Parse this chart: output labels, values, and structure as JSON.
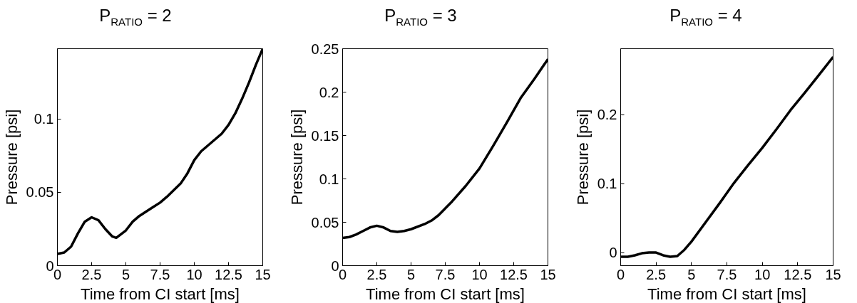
{
  "chart_data": [
    {
      "type": "line",
      "title": "P$_{RATIO}$ = 2",
      "xlabel": "Time from CI start [ms]",
      "ylabel": "Pressure [psi]",
      "xlim": [
        0,
        15
      ],
      "ylim": [
        0,
        0.148
      ],
      "xticks": [
        0,
        2.5,
        5,
        7.5,
        10,
        12.5,
        15
      ],
      "yticks": [
        0,
        0.05,
        0.1
      ],
      "x": [
        0,
        0.5,
        1,
        1.5,
        2,
        2.5,
        3,
        3.5,
        4,
        4.3,
        5,
        5.5,
        6,
        7,
        7.5,
        8,
        9,
        9.5,
        10,
        10.5,
        11,
        12,
        12.5,
        13,
        13.5,
        14,
        14.5,
        15
      ],
      "series": [
        {
          "color": "#000000",
          "values": [
            0.008,
            0.009,
            0.013,
            0.022,
            0.03,
            0.033,
            0.031,
            0.025,
            0.02,
            0.019,
            0.024,
            0.03,
            0.034,
            0.04,
            0.043,
            0.047,
            0.056,
            0.063,
            0.072,
            0.078,
            0.082,
            0.09,
            0.096,
            0.104,
            0.114,
            0.125,
            0.137,
            0.148
          ]
        }
      ]
    },
    {
      "type": "line",
      "title": "P$_{RATIO}$ = 3",
      "xlabel": "Time from CI start [ms]",
      "ylabel": "Pressure [psi]",
      "xlim": [
        0,
        15
      ],
      "ylim": [
        0,
        0.25
      ],
      "xticks": [
        0,
        2.5,
        5,
        7.5,
        10,
        12.5,
        15
      ],
      "yticks": [
        0,
        0.05,
        0.1,
        0.15,
        0.2,
        0.25
      ],
      "x": [
        0,
        0.5,
        1,
        1.5,
        2,
        2.5,
        3,
        3.5,
        4,
        4.5,
        5,
        6,
        6.5,
        7,
        7.5,
        8,
        9,
        10,
        11,
        12,
        13,
        14,
        15
      ],
      "series": [
        {
          "color": "#000000",
          "values": [
            0.032,
            0.033,
            0.036,
            0.04,
            0.044,
            0.046,
            0.044,
            0.04,
            0.039,
            0.04,
            0.042,
            0.048,
            0.052,
            0.058,
            0.066,
            0.074,
            0.092,
            0.112,
            0.138,
            0.165,
            0.193,
            0.215,
            0.238
          ]
        }
      ]
    },
    {
      "type": "line",
      "title": "P$_{RATIO}$ = 4",
      "xlabel": "Time from CI start [ms]",
      "ylabel": "Pressure [psi]",
      "xlim": [
        0,
        15
      ],
      "ylim": [
        -0.019,
        0.296
      ],
      "xticks": [
        0,
        2.5,
        5,
        7.5,
        10,
        12.5,
        15
      ],
      "yticks": [
        0,
        0.1,
        0.2
      ],
      "x": [
        0,
        0.5,
        1,
        1.5,
        2,
        2.5,
        3,
        3.5,
        4,
        4.5,
        5,
        6,
        7,
        8,
        9,
        10,
        11,
        12,
        13,
        14,
        15
      ],
      "series": [
        {
          "color": "#000000",
          "values": [
            -0.006,
            -0.006,
            -0.004,
            -0.001,
            0,
            0,
            -0.004,
            -0.006,
            -0.005,
            0.004,
            0.016,
            0.044,
            0.072,
            0.101,
            0.127,
            0.152,
            0.179,
            0.207,
            0.232,
            0.258,
            0.284
          ]
        }
      ]
    }
  ]
}
